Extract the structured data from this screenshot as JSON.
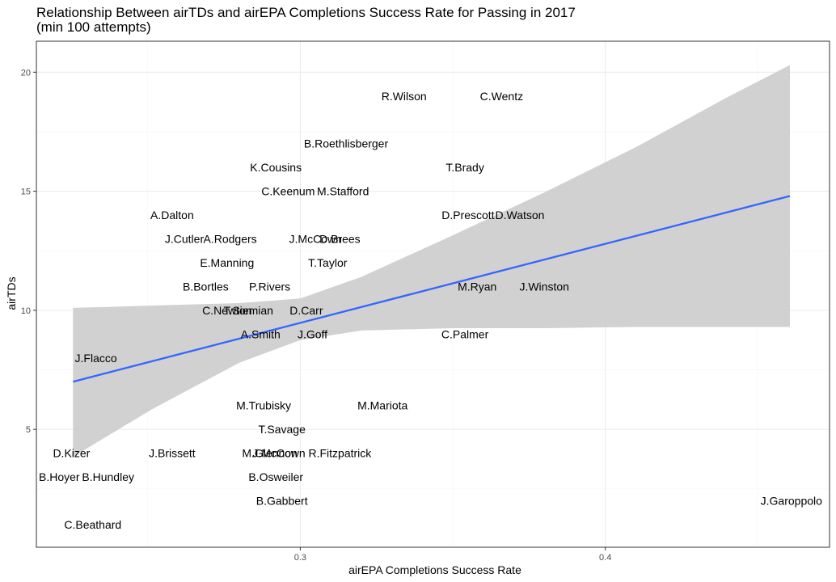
{
  "chart_data": {
    "type": "scatter",
    "title": "Relationship Between airTDs and airEPA Completions Success Rate for Passing in 2017",
    "subtitle": "(min 100 attempts)",
    "xlabel": "airEPA Completions Success Rate",
    "ylabel": "airTDs",
    "xlim": [
      0.2135,
      0.4735
    ],
    "ylim": [
      0.05,
      21.3
    ],
    "x_ticks": [
      0.3,
      0.4
    ],
    "x_minor_ticks": [
      0.25,
      0.35,
      0.45
    ],
    "y_ticks": [
      5,
      10,
      15,
      20
    ],
    "y_minor_ticks": [
      2.5,
      7.5,
      12.5,
      17.5
    ],
    "grid": true,
    "points": [
      {
        "label": "R.Wilson",
        "x": 0.334,
        "y": 19
      },
      {
        "label": "C.Wentz",
        "x": 0.366,
        "y": 19
      },
      {
        "label": "B.Roethlisberger",
        "x": 0.315,
        "y": 17
      },
      {
        "label": "K.Cousins",
        "x": 0.292,
        "y": 16
      },
      {
        "label": "T.Brady",
        "x": 0.354,
        "y": 16
      },
      {
        "label": "C.Keenum",
        "x": 0.296,
        "y": 15
      },
      {
        "label": "M.Stafford",
        "x": 0.314,
        "y": 15
      },
      {
        "label": "A.Dalton",
        "x": 0.258,
        "y": 14
      },
      {
        "label": "D.Prescott",
        "x": 0.355,
        "y": 14
      },
      {
        "label": "D.Watson",
        "x": 0.372,
        "y": 14
      },
      {
        "label": "J.Cutler",
        "x": 0.262,
        "y": 13
      },
      {
        "label": "A.Rodgers",
        "x": 0.277,
        "y": 13
      },
      {
        "label": "J.McCown",
        "x": 0.305,
        "y": 13
      },
      {
        "label": "D.Brees",
        "x": 0.313,
        "y": 13
      },
      {
        "label": "E.Manning",
        "x": 0.276,
        "y": 12
      },
      {
        "label": "T.Taylor",
        "x": 0.309,
        "y": 12
      },
      {
        "label": "B.Bortles",
        "x": 0.269,
        "y": 11
      },
      {
        "label": "P.Rivers",
        "x": 0.29,
        "y": 11
      },
      {
        "label": "M.Ryan",
        "x": 0.358,
        "y": 11
      },
      {
        "label": "J.Winston",
        "x": 0.38,
        "y": 11
      },
      {
        "label": "C.Newton",
        "x": 0.276,
        "y": 10
      },
      {
        "label": "T.Siemian",
        "x": 0.283,
        "y": 10
      },
      {
        "label": "D.Carr",
        "x": 0.302,
        "y": 10
      },
      {
        "label": "A.Smith",
        "x": 0.287,
        "y": 9
      },
      {
        "label": "J.Goff",
        "x": 0.304,
        "y": 9
      },
      {
        "label": "C.Palmer",
        "x": 0.354,
        "y": 9
      },
      {
        "label": "J.Flacco",
        "x": 0.233,
        "y": 8
      },
      {
        "label": "M.Trubisky",
        "x": 0.288,
        "y": 6
      },
      {
        "label": "M.Mariota",
        "x": 0.327,
        "y": 6
      },
      {
        "label": "T.Savage",
        "x": 0.294,
        "y": 5
      },
      {
        "label": "D.Kizer",
        "x": 0.225,
        "y": 4
      },
      {
        "label": "J.Brissett",
        "x": 0.258,
        "y": 4
      },
      {
        "label": "M.Glennon",
        "x": 0.29,
        "y": 4
      },
      {
        "label": "J.McCown",
        "x": 0.293,
        "y": 4
      },
      {
        "label": "R.Fitzpatrick",
        "x": 0.313,
        "y": 4
      },
      {
        "label": "B.Hoyer",
        "x": 0.221,
        "y": 3
      },
      {
        "label": "B.Hundley",
        "x": 0.237,
        "y": 3
      },
      {
        "label": "B.Osweiler",
        "x": 0.292,
        "y": 3
      },
      {
        "label": "B.Gabbert",
        "x": 0.294,
        "y": 2
      },
      {
        "label": "J.Garoppolo",
        "x": 0.461,
        "y": 2
      },
      {
        "label": "C.Beathard",
        "x": 0.232,
        "y": 1
      }
    ],
    "trend": {
      "x": [
        0.2255,
        0.4605
      ],
      "y": [
        7.0,
        14.8
      ]
    },
    "confidence_band": {
      "x": [
        0.2255,
        0.2515,
        0.28,
        0.3,
        0.32,
        0.35,
        0.38,
        0.41,
        0.44,
        0.4605
      ],
      "lower": [
        3.85,
        5.85,
        7.8,
        8.75,
        9.15,
        9.25,
        9.25,
        9.3,
        9.3,
        9.3
      ],
      "upper": [
        10.1,
        10.2,
        10.3,
        10.5,
        11.4,
        13.15,
        14.95,
        16.85,
        18.95,
        20.3
      ]
    },
    "colors": {
      "trend": "#3366FF",
      "band": "#CCCCCC",
      "grid_major": "#EBEBEB",
      "grid_minor": "#F5F5F5",
      "panel_border": "#333333"
    }
  }
}
